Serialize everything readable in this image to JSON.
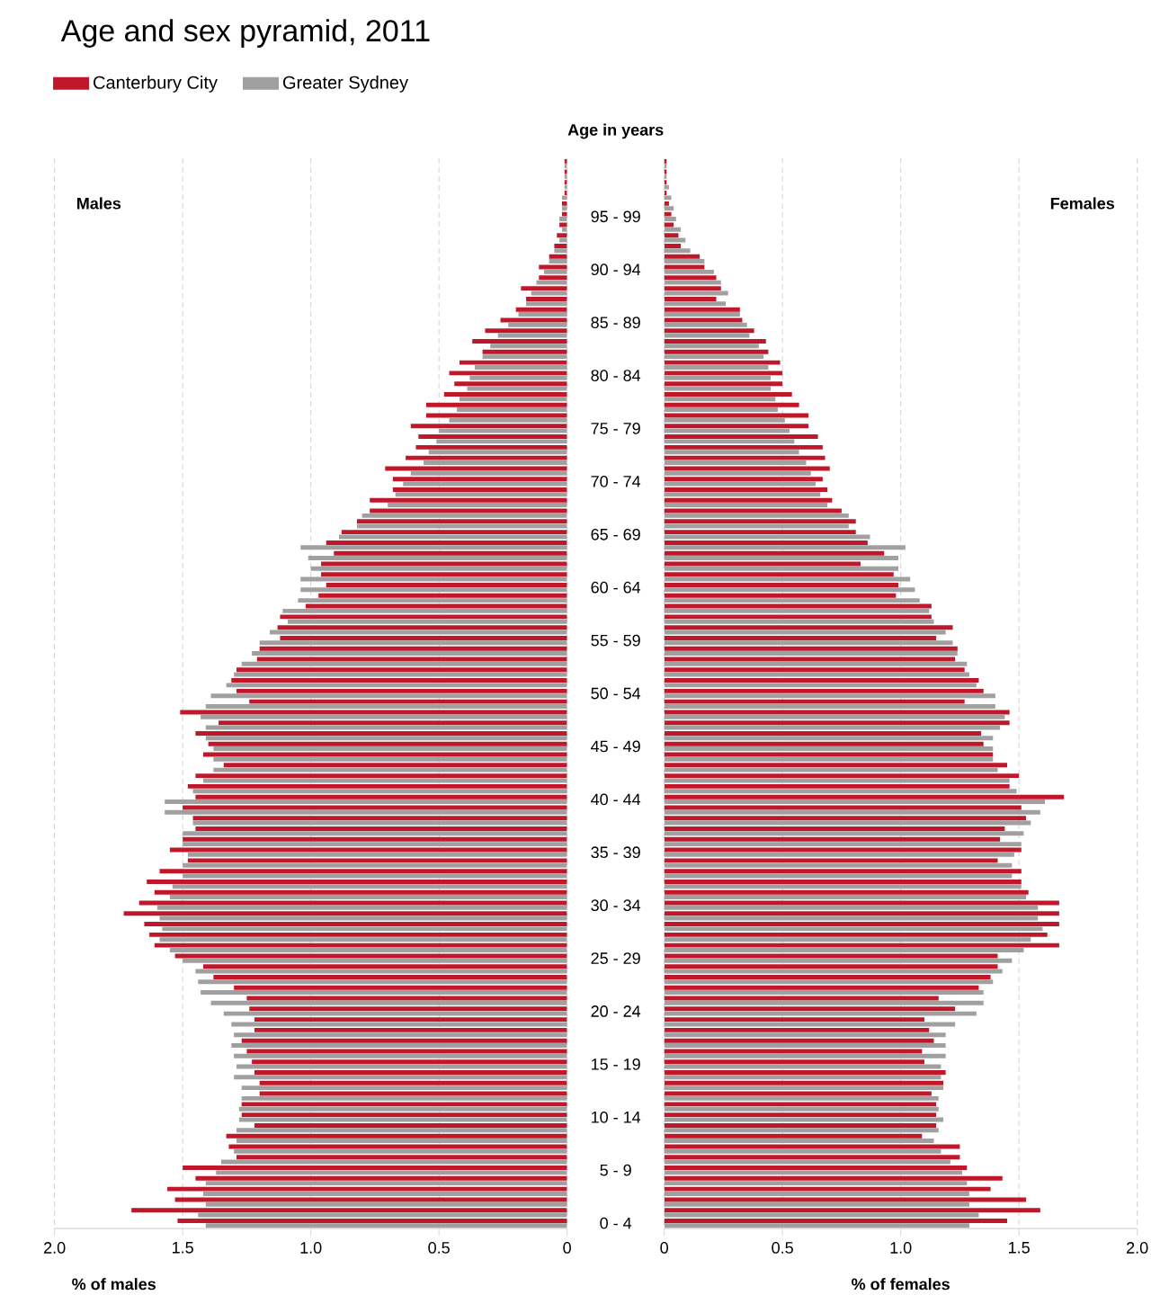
{
  "chart_data": [
    {
      "type": "bar",
      "orientation": "horizontal",
      "title": "Age and sex pyramid, 2011",
      "subtitle": "Males",
      "xlabel": "% of males",
      "categories": [
        null,
        null,
        null,
        null,
        null,
        null,
        null,
        null,
        null,
        null,
        null,
        null,
        null,
        null,
        null,
        null,
        null,
        null,
        null,
        null,
        null,
        null,
        null,
        null,
        null,
        null,
        null,
        null,
        null,
        null,
        null,
        null,
        null,
        null,
        null,
        null,
        null,
        null,
        null,
        null,
        null,
        null,
        null,
        null,
        null,
        null,
        null,
        null,
        null,
        null,
        null,
        null,
        null,
        null,
        null,
        null,
        null,
        null,
        null,
        null,
        null,
        null,
        null,
        null,
        null,
        null,
        null,
        null,
        null,
        null,
        null,
        null,
        null,
        null,
        null,
        null,
        null,
        null,
        null,
        null,
        null,
        null,
        null,
        null,
        null,
        null,
        null,
        null,
        null,
        null,
        null,
        null,
        null,
        null,
        null,
        null,
        null,
        null,
        null,
        null,
        null
      ],
      "series": [
        {
          "name": "Canterbury City",
          "color": "#c0182a",
          "values": [
            0.01,
            0.01,
            0.01,
            0.01,
            0.02,
            0.02,
            0.03,
            0.04,
            0.05,
            0.07,
            0.11,
            0.11,
            0.18,
            0.16,
            0.2,
            0.26,
            0.32,
            0.37,
            0.33,
            0.42,
            0.46,
            0.44,
            0.48,
            0.55,
            0.55,
            0.61,
            0.58,
            0.59,
            0.63,
            0.71,
            0.68,
            0.68,
            0.77,
            0.77,
            0.82,
            0.88,
            0.94,
            0.91,
            0.96,
            0.96,
            0.94,
            0.97,
            1.02,
            1.12,
            1.13,
            1.12,
            1.2,
            1.21,
            1.29,
            1.31,
            1.29,
            1.24,
            1.51,
            1.36,
            1.45,
            1.4,
            1.42,
            1.34,
            1.45,
            1.48,
            1.45,
            1.5,
            1.46,
            1.45,
            1.5,
            1.55,
            1.48,
            1.59,
            1.64,
            1.61,
            1.67,
            1.73,
            1.65,
            1.63,
            1.61,
            1.53,
            1.42,
            1.38,
            1.3,
            1.25,
            1.24,
            1.22,
            1.22,
            1.27,
            1.25,
            1.23,
            1.22,
            1.2,
            1.2,
            1.27,
            1.27,
            1.22,
            1.33,
            1.32,
            1.29,
            1.5,
            1.45,
            1.56,
            1.53,
            1.7,
            1.52
          ]
        },
        {
          "name": "Greater Sydney",
          "color": "#a0a0a0",
          "values": [
            0.01,
            0.01,
            0.01,
            0.02,
            0.02,
            0.03,
            0.02,
            0.03,
            0.05,
            0.07,
            0.09,
            0.12,
            0.14,
            0.16,
            0.19,
            0.23,
            0.27,
            0.3,
            0.33,
            0.36,
            0.38,
            0.39,
            0.42,
            0.43,
            0.46,
            0.5,
            0.51,
            0.54,
            0.56,
            0.61,
            0.64,
            0.67,
            0.7,
            0.8,
            0.82,
            0.89,
            1.04,
            1.01,
            1.0,
            1.04,
            1.04,
            1.05,
            1.11,
            1.09,
            1.16,
            1.2,
            1.23,
            1.27,
            1.3,
            1.33,
            1.39,
            1.41,
            1.43,
            1.41,
            1.41,
            1.38,
            1.38,
            1.38,
            1.42,
            1.46,
            1.57,
            1.57,
            1.46,
            1.5,
            1.5,
            1.48,
            1.5,
            1.5,
            1.54,
            1.55,
            1.6,
            1.59,
            1.58,
            1.59,
            1.55,
            1.5,
            1.45,
            1.44,
            1.43,
            1.39,
            1.34,
            1.31,
            1.3,
            1.31,
            1.3,
            1.29,
            1.3,
            1.27,
            1.27,
            1.28,
            1.28,
            1.29,
            1.29,
            1.3,
            1.35,
            1.37,
            1.41,
            1.42,
            1.41,
            1.44,
            1.41
          ]
        }
      ],
      "xlim": [
        2,
        0
      ],
      "xticks": [
        {
          "value": 2,
          "label": "2.0"
        },
        {
          "value": 1.5,
          "label": "1.5"
        },
        {
          "value": 1,
          "label": "1.0"
        },
        {
          "value": 0.5,
          "label": "0.5"
        },
        0
      ],
      "grid": "x",
      "legend": "top left"
    },
    {
      "type": "bar",
      "orientation": "horizontal",
      "subtitle": "Females",
      "xlabel": "% of females",
      "ylabel": "Age in years",
      "categories": [
        null,
        null,
        null,
        null,
        null,
        "95 - 99",
        null,
        null,
        null,
        null,
        "90 - 94",
        null,
        null,
        null,
        null,
        "85 - 89",
        null,
        null,
        null,
        null,
        "80 - 84",
        null,
        null,
        null,
        null,
        "75 - 79",
        null,
        null,
        null,
        null,
        "70 - 74",
        null,
        null,
        null,
        null,
        "65 - 69",
        null,
        null,
        null,
        null,
        "60 - 64",
        null,
        null,
        null,
        null,
        "55 - 59",
        null,
        null,
        null,
        null,
        "50 - 54",
        null,
        null,
        null,
        null,
        "45 - 49",
        null,
        null,
        null,
        null,
        "40 - 44",
        null,
        null,
        null,
        null,
        "35 - 39",
        null,
        null,
        null,
        null,
        "30 - 34",
        null,
        null,
        null,
        null,
        "25 - 29",
        null,
        null,
        null,
        null,
        "20 - 24",
        null,
        null,
        null,
        null,
        "15 - 19",
        null,
        null,
        null,
        null,
        "10 - 14",
        null,
        null,
        null,
        null,
        "5 - 9",
        null,
        null,
        null,
        null,
        "0 - 4"
      ],
      "series": [
        {
          "color": "#c0182a",
          "values": [
            0.01,
            0.01,
            0.01,
            0.01,
            0.02,
            0.03,
            0.04,
            0.06,
            0.07,
            0.15,
            0.17,
            0.22,
            0.24,
            0.22,
            0.32,
            0.33,
            0.38,
            0.43,
            0.44,
            0.49,
            0.5,
            0.5,
            0.54,
            0.57,
            0.61,
            0.61,
            0.65,
            0.67,
            0.68,
            0.7,
            0.67,
            0.69,
            0.71,
            0.75,
            0.81,
            0.81,
            0.86,
            0.93,
            0.83,
            0.97,
            0.99,
            0.98,
            1.13,
            1.13,
            1.22,
            1.15,
            1.24,
            1.23,
            1.27,
            1.33,
            1.35,
            1.27,
            1.46,
            1.46,
            1.34,
            1.35,
            1.39,
            1.45,
            1.5,
            1.46,
            1.69,
            1.51,
            1.53,
            1.44,
            1.42,
            1.51,
            1.41,
            1.51,
            1.51,
            1.54,
            1.67,
            1.67,
            1.67,
            1.62,
            1.67,
            1.41,
            1.41,
            1.38,
            1.33,
            1.16,
            1.23,
            1.1,
            1.12,
            1.14,
            1.09,
            1.1,
            1.19,
            1.18,
            1.13,
            1.15,
            1.15,
            1.15,
            1.09,
            1.25,
            1.25,
            1.28,
            1.43,
            1.38,
            1.53,
            1.59,
            1.45
          ]
        },
        {
          "color": "#a0a0a0",
          "values": [
            0.01,
            0.01,
            0.02,
            0.03,
            0.04,
            0.05,
            0.07,
            0.09,
            0.11,
            0.17,
            0.21,
            0.24,
            0.27,
            0.26,
            0.32,
            0.35,
            0.36,
            0.4,
            0.42,
            0.44,
            0.45,
            0.45,
            0.47,
            0.48,
            0.51,
            0.53,
            0.55,
            0.57,
            0.6,
            0.62,
            0.64,
            0.66,
            0.69,
            0.78,
            0.78,
            0.87,
            1.02,
            0.99,
            0.99,
            1.04,
            1.06,
            1.08,
            1.12,
            1.14,
            1.19,
            1.22,
            1.24,
            1.28,
            1.29,
            1.32,
            1.4,
            1.4,
            1.44,
            1.42,
            1.39,
            1.39,
            1.39,
            1.41,
            1.46,
            1.49,
            1.61,
            1.59,
            1.55,
            1.52,
            1.51,
            1.48,
            1.47,
            1.47,
            1.51,
            1.53,
            1.58,
            1.58,
            1.6,
            1.55,
            1.52,
            1.47,
            1.43,
            1.39,
            1.35,
            1.35,
            1.32,
            1.23,
            1.19,
            1.19,
            1.19,
            1.17,
            1.17,
            1.18,
            1.16,
            1.16,
            1.18,
            1.16,
            1.14,
            1.17,
            1.21,
            1.26,
            1.28,
            1.29,
            1.29,
            1.33,
            1.29
          ]
        }
      ],
      "xlim": [
        0,
        2
      ],
      "xticks": [
        0,
        0.5,
        {
          "value": 1,
          "label": "1.0"
        },
        1.5,
        {
          "value": 2,
          "label": "2.0"
        }
      ],
      "grid": "x"
    }
  ]
}
